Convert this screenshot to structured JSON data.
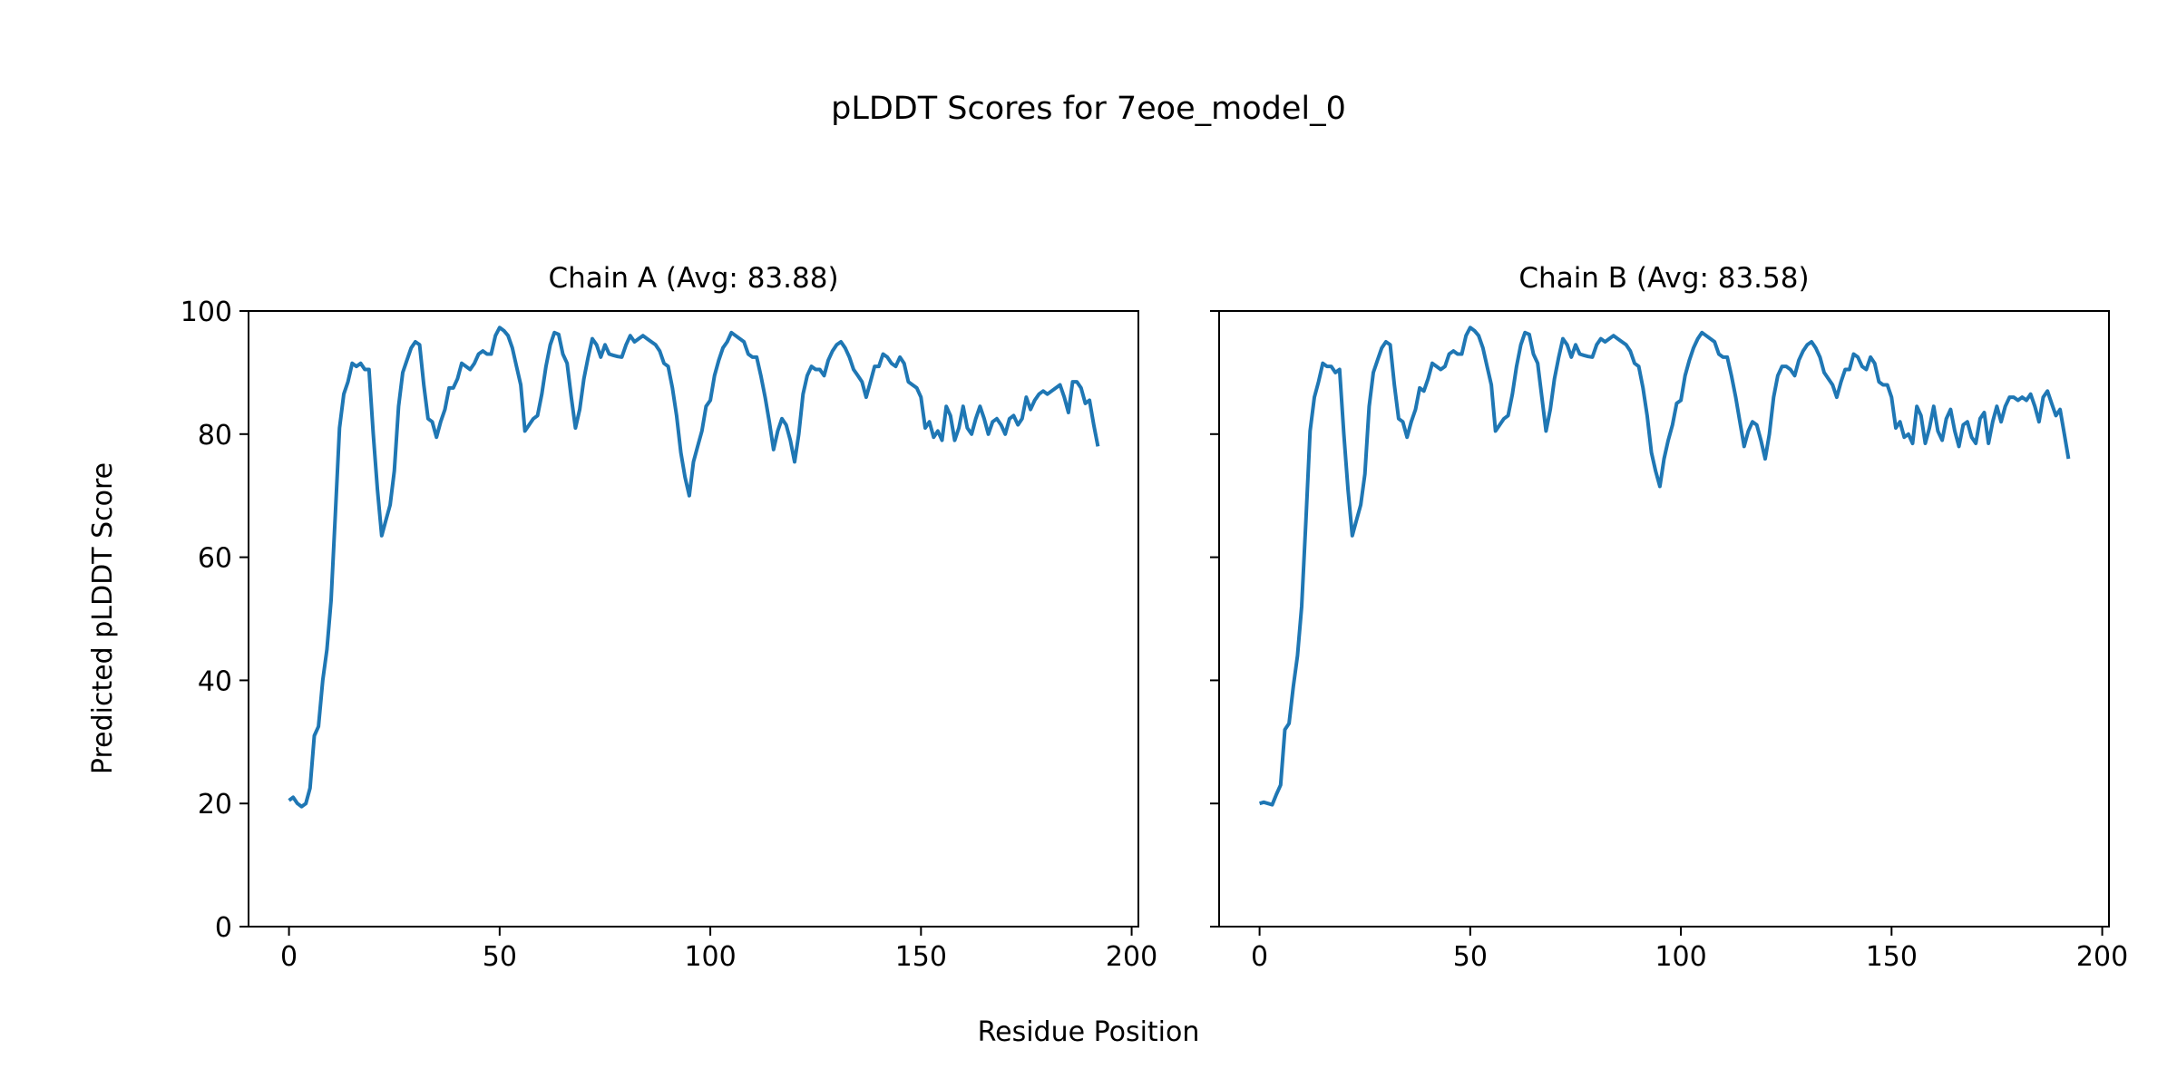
{
  "chart_data": {
    "type": "line",
    "title": "pLDDT Scores for 7eoe_model_0",
    "xlabel": "Residue Position",
    "ylabel": "Predicted pLDDT Score",
    "ylim": [
      0,
      100
    ],
    "xlim": [
      -9.6,
      201.6
    ],
    "xticks": [
      0,
      50,
      100,
      150,
      200
    ],
    "yticks": [
      0,
      20,
      40,
      60,
      80,
      100
    ],
    "grid": false,
    "line_color": "#1f77b4",
    "panels": [
      {
        "title": "Chain A (Avg: 83.88)",
        "values": [
          20.5,
          21,
          20,
          19.5,
          20,
          22.5,
          31,
          32.5,
          40,
          45,
          53,
          67,
          81,
          86.5,
          88.5,
          91.5,
          91,
          91.5,
          90.5,
          90.5,
          80,
          71,
          63.5,
          66,
          68.5,
          74,
          84.5,
          90,
          92,
          94,
          95,
          94.5,
          88,
          82.5,
          82,
          79.5,
          82,
          84,
          87.5,
          87.5,
          89,
          91.5,
          91,
          90.5,
          91.5,
          93,
          93.5,
          93,
          93,
          96,
          97.3,
          96.8,
          96,
          94,
          91,
          88,
          80.5,
          81.5,
          82.5,
          83,
          86.5,
          91,
          94.5,
          96.5,
          96.2,
          93,
          91.5,
          86,
          81,
          84,
          89,
          92.5,
          95.5,
          94.5,
          92.5,
          94.5,
          93,
          92.8,
          92.6,
          92.5,
          94.5,
          96,
          95,
          95.5,
          96,
          95.5,
          95,
          94.5,
          93.5,
          91.5,
          91,
          87.5,
          83,
          77,
          73,
          70,
          75.5,
          78,
          80.5,
          84.5,
          85.5,
          89.5,
          92,
          94,
          95,
          96.5,
          96,
          95.5,
          95,
          93,
          92.5,
          92.5,
          89.5,
          86,
          82,
          77.5,
          80.5,
          82.5,
          81.5,
          79,
          75.5,
          80,
          86.5,
          89.5,
          91,
          90.5,
          90.5,
          89.5,
          92,
          93.5,
          94.5,
          95,
          94,
          92.5,
          90.5,
          89.5,
          88.5,
          86,
          88.5,
          91,
          91,
          93,
          92.5,
          91.5,
          91,
          92.5,
          91.5,
          88.5,
          88,
          87.5,
          86,
          81,
          82,
          79.5,
          80.5,
          79,
          84.5,
          83,
          79,
          81,
          84.5,
          81,
          80,
          82.5,
          84.5,
          82.5,
          80,
          82,
          82.5,
          81.5,
          80,
          82.5,
          83,
          81.5,
          82.5,
          86,
          84,
          85.5,
          86.5,
          87,
          86.5,
          87,
          87.5,
          88,
          86,
          83.5,
          88.5,
          88.5,
          87.5,
          85,
          85.5,
          81.5,
          78
        ]
      },
      {
        "title": "Chain B (Avg: 83.58)",
        "values": [
          20,
          20.2,
          20,
          19.8,
          21.5,
          23,
          32,
          33,
          39,
          44,
          52,
          66,
          80.5,
          86,
          88.5,
          91.5,
          91,
          91,
          90,
          90.5,
          80,
          71,
          63.5,
          66,
          68.5,
          73.5,
          84.5,
          90,
          92,
          94,
          95,
          94.5,
          88,
          82.5,
          82,
          79.5,
          82,
          84,
          87.5,
          87,
          89,
          91.5,
          91,
          90.5,
          91,
          93,
          93.5,
          93,
          93,
          96,
          97.3,
          96.8,
          96,
          94,
          91,
          88,
          80.5,
          81.5,
          82.5,
          83,
          86.5,
          91,
          94.5,
          96.5,
          96.2,
          93,
          91.5,
          86,
          80.5,
          84,
          89,
          92.5,
          95.5,
          94.5,
          92.5,
          94.5,
          93,
          92.8,
          92.6,
          92.5,
          94.5,
          95.5,
          95,
          95.5,
          96,
          95.5,
          95,
          94.5,
          93.5,
          91.5,
          91,
          87.5,
          83,
          77,
          74,
          71.5,
          76,
          79,
          81.5,
          85,
          85.5,
          89.5,
          92,
          94,
          95.5,
          96.5,
          96,
          95.5,
          95,
          93,
          92.5,
          92.5,
          89.5,
          86,
          82,
          78,
          80.5,
          82,
          81.5,
          79,
          76,
          80,
          86,
          89.5,
          91,
          91,
          90.5,
          89.5,
          92,
          93.5,
          94.5,
          95,
          94,
          92.5,
          90,
          89,
          88,
          86,
          88.5,
          90.5,
          90.5,
          93,
          92.5,
          91,
          90.5,
          92.5,
          91.5,
          88.5,
          88,
          88,
          86,
          81,
          82,
          79.5,
          80,
          78.5,
          84.5,
          83,
          78.5,
          81,
          84.5,
          80.5,
          79,
          82.5,
          84,
          80.5,
          78,
          81.5,
          82,
          79.5,
          78.5,
          82.5,
          83.5,
          78.5,
          82,
          84.5,
          82,
          84.5,
          86,
          86,
          85.5,
          86,
          85.5,
          86.5,
          84.5,
          82,
          86,
          87,
          85,
          83,
          84,
          80,
          76
        ]
      }
    ]
  }
}
